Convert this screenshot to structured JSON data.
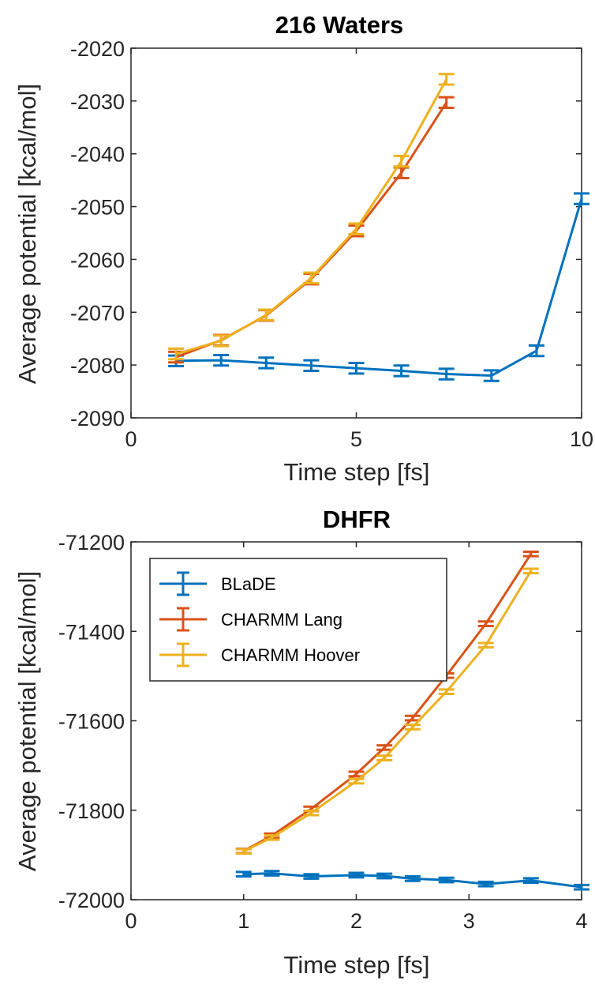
{
  "chart_data": [
    {
      "type": "line",
      "title": "216 Waters",
      "xlabel": "Time step [fs]",
      "ylabel": "Average potential [kcal/mol]",
      "xlim": [
        0,
        10
      ],
      "ylim": [
        -2090,
        -2020
      ],
      "xticks": [
        0,
        5,
        10
      ],
      "yticks": [
        -2090,
        -2080,
        -2070,
        -2060,
        -2050,
        -2040,
        -2030,
        -2020
      ],
      "grid": false,
      "error_bars": true,
      "series": [
        {
          "color": "#0072BD",
          "x": [
            1,
            2,
            3,
            4,
            5,
            6,
            7,
            8,
            9,
            10
          ],
          "y": [
            -2079.2,
            -2079.1,
            -2079.6,
            -2080.1,
            -2080.6,
            -2081.1,
            -2081.7,
            -2082.0,
            -2077.3,
            -2048.5
          ]
        },
        {
          "color": "#D95319",
          "x": [
            1,
            2,
            3,
            4,
            5,
            6,
            7
          ],
          "y": [
            -2078.5,
            -2075.3,
            -2070.6,
            -2063.7,
            -2054.6,
            -2043.6,
            -2030.3
          ]
        },
        {
          "color": "#EDB120",
          "x": [
            1,
            2,
            3,
            4,
            5,
            6,
            7
          ],
          "y": [
            -2077.9,
            -2075.4,
            -2070.5,
            -2063.5,
            -2054.2,
            -2041.4,
            -2025.9
          ]
        }
      ]
    },
    {
      "type": "line",
      "title": "DHFR",
      "xlabel": "Time step [fs]",
      "ylabel": "Average potential [kcal/mol]",
      "xlim": [
        0,
        4
      ],
      "ylim": [
        -72000,
        -71200
      ],
      "xticks": [
        0,
        1,
        2,
        3,
        4
      ],
      "yticks": [
        -72000,
        -71800,
        -71600,
        -71400,
        -71200
      ],
      "grid": false,
      "error_bars": true,
      "legend_position": "top-left",
      "series": [
        {
          "name": "BLaDE",
          "color": "#0072BD",
          "x": [
            1,
            1.25,
            1.6,
            2,
            2.25,
            2.5,
            2.8,
            3.15,
            3.55,
            4
          ],
          "y": [
            -71943,
            -71941,
            -71948,
            -71945,
            -71947,
            -71953,
            -71956,
            -71965,
            -71957,
            -71972
          ]
        },
        {
          "name": "CHARMM Lang",
          "color": "#D95319",
          "x": [
            1,
            1.25,
            1.6,
            2,
            2.25,
            2.5,
            2.8,
            3.15,
            3.55
          ],
          "y": [
            -71891,
            -71857,
            -71797,
            -71719,
            -71660,
            -71594,
            -71499,
            -71383,
            -71227
          ]
        },
        {
          "name": "CHARMM Hoover",
          "color": "#EDB120",
          "x": [
            1,
            1.25,
            1.6,
            2,
            2.25,
            2.5,
            2.8,
            3.15,
            3.55
          ],
          "y": [
            -71892,
            -71861,
            -71806,
            -71735,
            -71683,
            -71614,
            -71535,
            -71431,
            -71265
          ]
        }
      ]
    }
  ]
}
